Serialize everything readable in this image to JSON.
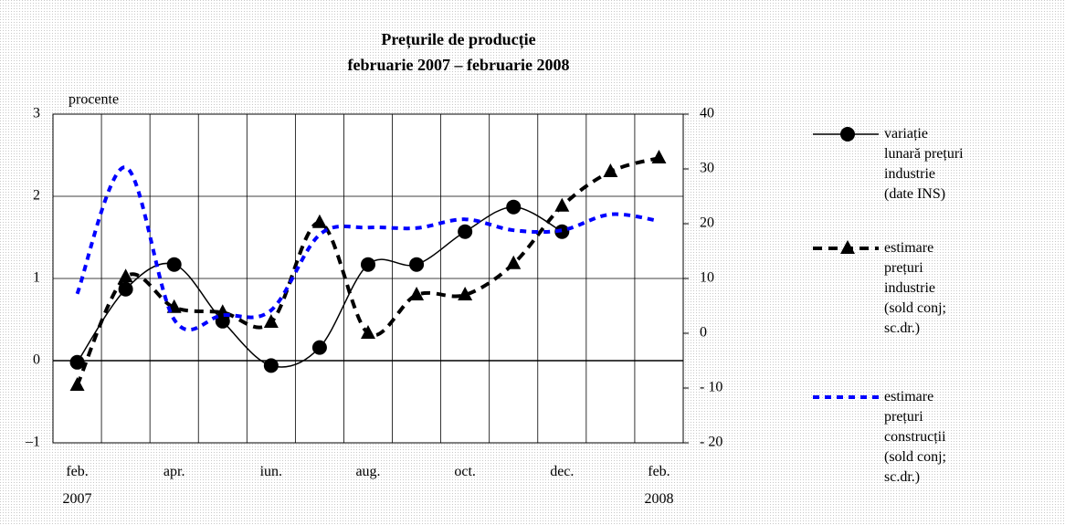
{
  "chart_data": {
    "type": "line",
    "title": "Prețurile de producție",
    "subtitle": "februarie 2007 – februarie 2008",
    "y_label": "procente",
    "categories": [
      "feb.\n2007",
      null,
      "apr.",
      null,
      "iun.",
      null,
      "aug.",
      null,
      "oct.",
      null,
      "dec.",
      null,
      "feb.\n2008"
    ],
    "ylim": [
      -1,
      3
    ],
    "yticks": [
      {
        "value": -1,
        "label": "–1"
      },
      0,
      1,
      2,
      3
    ],
    "y2lim": [
      -20,
      40
    ],
    "y2ticks": [
      {
        "value": -20,
        "label": "- 20"
      },
      {
        "value": -10,
        "label": "- 10"
      },
      0,
      10,
      20,
      30,
      40
    ],
    "grid": true,
    "series": [
      {
        "name": "variație\nlunară prețuri\nindustrie\n(date INS)",
        "color": "#000000",
        "style": "solid",
        "marker": "circle",
        "values": [
          -0.02,
          0.87,
          1.17,
          0.48,
          -0.06,
          0.16,
          1.17,
          1.17,
          1.57,
          1.87,
          1.57,
          null,
          null
        ]
      },
      {
        "name": "estimare\nprețuri\nindustrie\n(sold conj;\nsc.dr.)",
        "color": "#000000",
        "style": "dashed",
        "marker": "triangle",
        "axis": "y2",
        "values": [
          -9.5,
          10.3,
          4.7,
          3.8,
          2,
          20.2,
          0,
          7,
          7,
          12.7,
          23.2,
          29.5,
          32
        ]
      },
      {
        "name": "estimare\nprețuri\nconstrucții\n(sold conj;\nsc.dr.)",
        "color": "#0000ff",
        "style": "dashed",
        "marker": "none",
        "axis": "y2",
        "values": [
          7.2,
          30.3,
          2.5,
          3.3,
          4.2,
          18,
          19.3,
          19.2,
          20.8,
          18.8,
          18.8,
          21.7,
          20.5
        ]
      }
    ]
  }
}
